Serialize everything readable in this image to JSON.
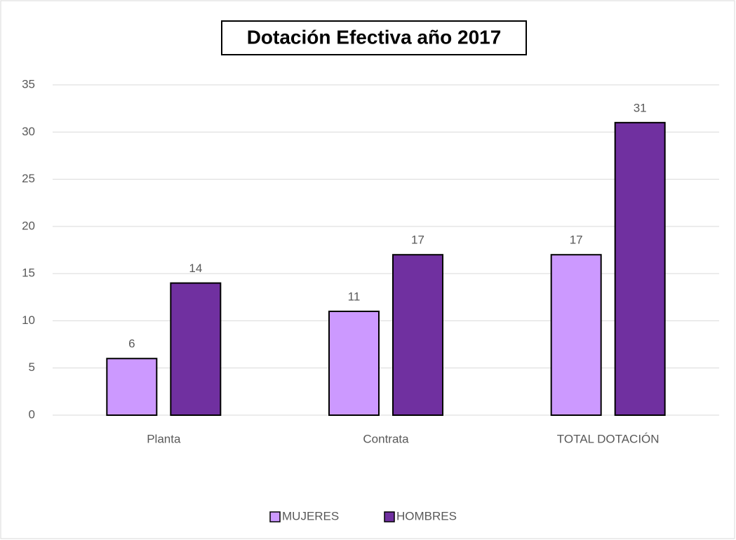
{
  "chart_data": {
    "type": "bar",
    "title": "Dotación Efectiva año 2017",
    "categories": [
      "Planta",
      "Contrata",
      "TOTAL DOTACIÓN"
    ],
    "series": [
      {
        "name": "MUJERES",
        "color": "#cc99ff",
        "values": [
          6,
          11,
          17
        ]
      },
      {
        "name": "HOMBRES",
        "color": "#7030a0",
        "values": [
          14,
          17,
          31
        ]
      }
    ],
    "ylim": [
      0,
      35
    ],
    "yticks": [
      0,
      5,
      10,
      15,
      20,
      25,
      30,
      35
    ],
    "grid": true,
    "legend": "bottom"
  }
}
